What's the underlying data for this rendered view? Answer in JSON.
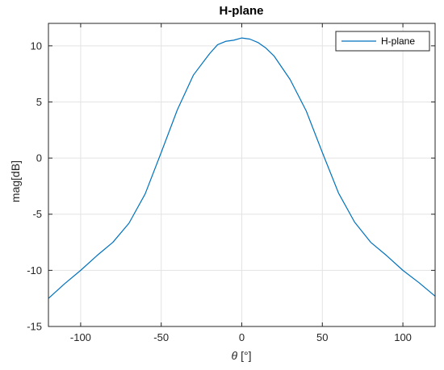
{
  "chart_data": {
    "type": "line",
    "title": "H-plane",
    "xlabel_symbol": "θ",
    "xlabel_unit": "[°]",
    "ylabel": "mag[dB]",
    "xlim": [
      -120,
      120
    ],
    "ylim": [
      -15,
      12
    ],
    "xticks": [
      -100,
      -50,
      0,
      50,
      100
    ],
    "yticks": [
      -15,
      -10,
      -5,
      0,
      5,
      10
    ],
    "grid": true,
    "legend_position": "top-right",
    "series": [
      {
        "name": "H-plane",
        "color": "#0072BD",
        "x": [
          -120,
          -110,
          -100,
          -90,
          -80,
          -70,
          -60,
          -50,
          -40,
          -30,
          -20,
          -15,
          -10,
          -5,
          0,
          5,
          10,
          15,
          20,
          30,
          40,
          50,
          60,
          70,
          80,
          90,
          100,
          110,
          120
        ],
        "y": [
          -12.5,
          -11.2,
          -10.0,
          -8.7,
          -7.5,
          -5.8,
          -3.2,
          0.5,
          4.3,
          7.4,
          9.3,
          10.1,
          10.4,
          10.5,
          10.7,
          10.6,
          10.3,
          9.8,
          9.1,
          7.0,
          4.2,
          0.5,
          -3.1,
          -5.7,
          -7.5,
          -8.7,
          -10.0,
          -11.1,
          -12.3
        ]
      }
    ]
  }
}
